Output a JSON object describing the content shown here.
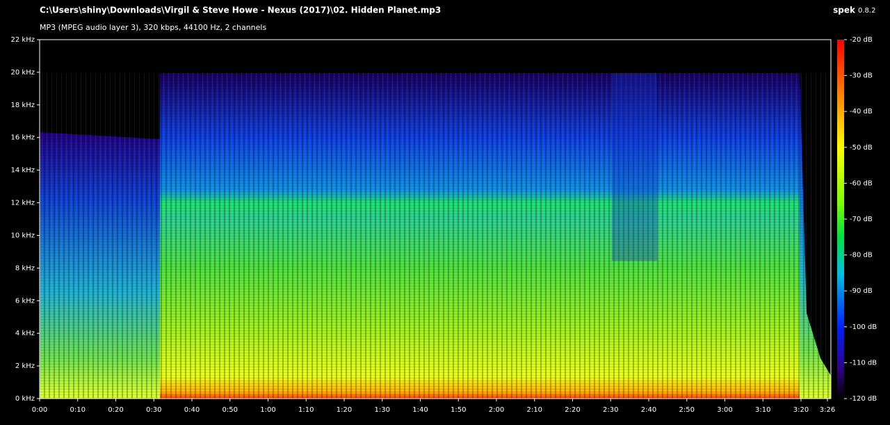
{
  "header": {
    "title": "C:\\Users\\shiny\\Downloads\\Virgil & Steve Howe - Nexus (2017)\\02. Hidden Planet.mp3",
    "info": "MP3 (MPEG audio layer 3), 320 kbps, 44100 Hz, 2 channels",
    "app": "spek",
    "version": "0.8.2"
  },
  "frequency_axis": {
    "labels": [
      "0 kHz",
      "2 kHz",
      "4 kHz",
      "6 kHz",
      "8 kHz",
      "10 kHz",
      "12 kHz",
      "14 kHz",
      "16 kHz",
      "18 kHz",
      "20 kHz",
      "22 kHz"
    ]
  },
  "time_axis": {
    "labels": [
      "0:00",
      "0:10",
      "0:20",
      "0:30",
      "0:40",
      "0:50",
      "1:00",
      "1:10",
      "1:20",
      "1:30",
      "1:40",
      "1:50",
      "2:00",
      "2:10",
      "2:20",
      "2:30",
      "2:40",
      "2:50",
      "3:00",
      "3:10",
      "3:20",
      "3:26"
    ]
  },
  "level_scale": {
    "labels": [
      "-20 dB",
      "-30 dB",
      "-40 dB",
      "-50 dB",
      "-60 dB",
      "-70 dB",
      "-80 dB",
      "-90 dB",
      "-100 dB",
      "-110 dB",
      "-120 dB"
    ]
  }
}
